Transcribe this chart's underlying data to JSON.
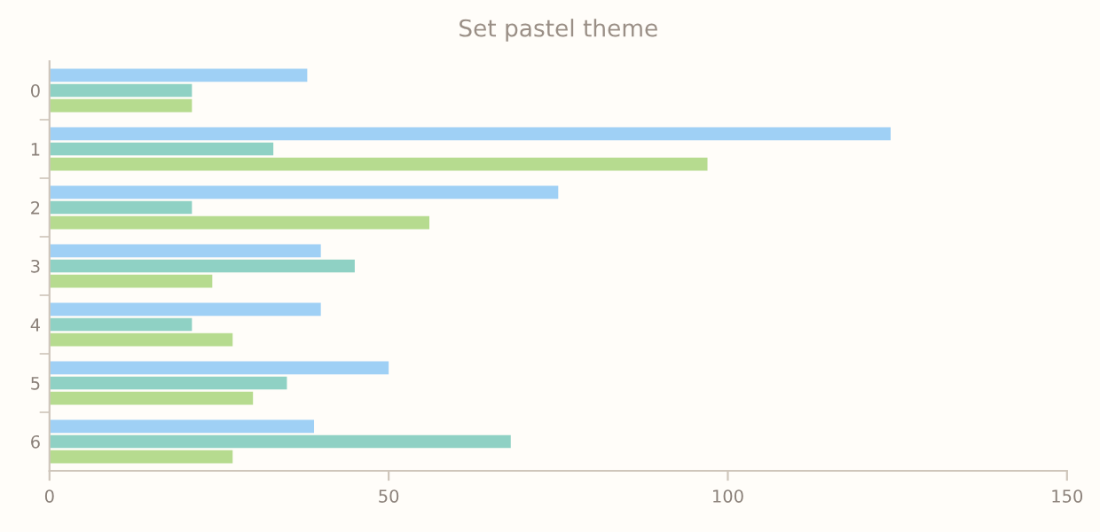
{
  "chart_data": {
    "type": "bar",
    "orientation": "horizontal",
    "title": "Set pastel theme",
    "categories": [
      "0",
      "1",
      "2",
      "3",
      "4",
      "5",
      "6"
    ],
    "series": [
      {
        "color": "#9fd0f5",
        "values": [
          38,
          124,
          75,
          40,
          40,
          50,
          39
        ]
      },
      {
        "color": "#8fd1c4",
        "values": [
          21,
          33,
          21,
          45,
          21,
          35,
          68
        ]
      },
      {
        "color": "#b6db8f",
        "values": [
          21,
          97,
          56,
          24,
          27,
          30,
          27
        ]
      }
    ],
    "xlim": [
      0,
      150
    ],
    "xticks": [
      0,
      50,
      100,
      150
    ],
    "grid": false,
    "legend": false
  }
}
